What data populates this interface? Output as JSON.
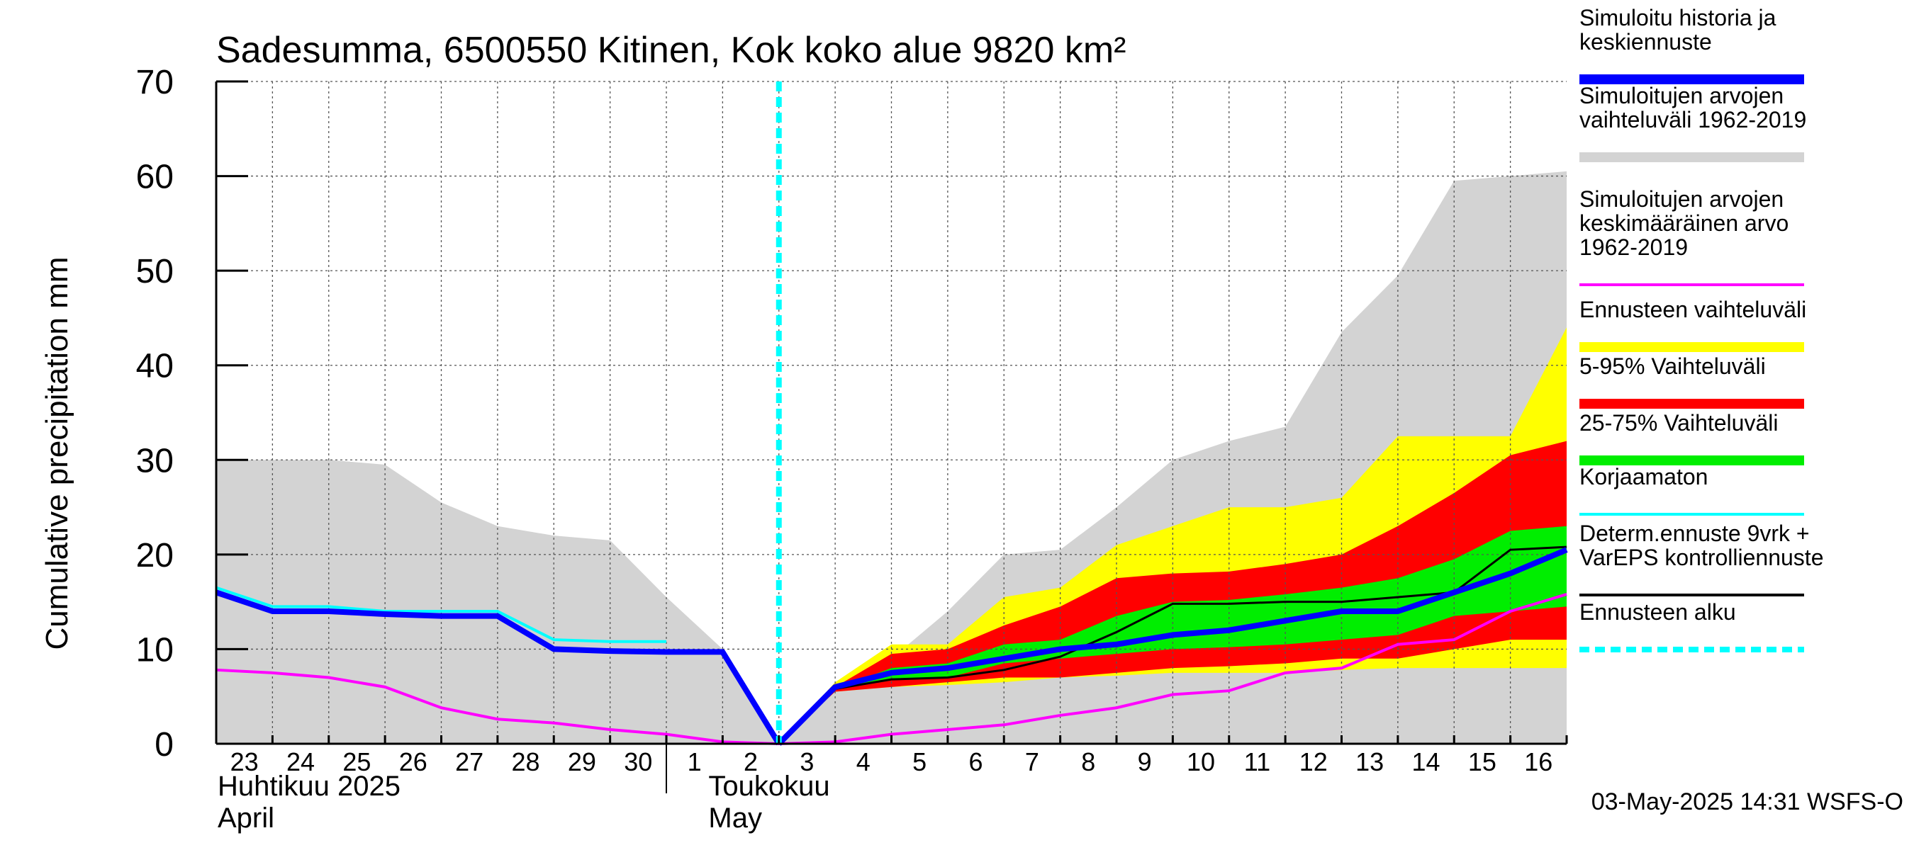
{
  "chart_data": {
    "type": "area",
    "title": "Sadesumma, 6500550 Kitinen, Kok koko alue 9820 km²",
    "ylabel": "Cumulative precipitation   mm",
    "ylim": [
      0,
      70
    ],
    "yticks": [
      "0",
      "10",
      "20",
      "30",
      "40",
      "50",
      "60",
      "70"
    ],
    "x_start": "2025-04-23",
    "x_end": "2025-05-17",
    "x_tick_labels": [
      "23",
      "24",
      "25",
      "26",
      "27",
      "28",
      "29",
      "30",
      "1",
      "2",
      "3",
      "4",
      "5",
      "6",
      "7",
      "8",
      "9",
      "10",
      "11",
      "12",
      "13",
      "14",
      "15",
      "16"
    ],
    "month_labels": [
      {
        "line1": "Huhtikuu  2025",
        "line2": "April"
      },
      {
        "line1": "Toukokuu",
        "line2": "May"
      }
    ],
    "forecast_start": "2025-05-03",
    "footer": "03-May-2025 14:31 WSFS-O",
    "legend": [
      {
        "label": "Simuloitu historia ja\nkeskiennuste",
        "color": "#0000ff",
        "kind": "thick"
      },
      {
        "label": "Simuloitujen arvojen\nvaihteluväli 1962-2019",
        "color": "#d3d3d3",
        "kind": "thick"
      },
      {
        "label": "Simuloitujen arvojen\nkeskimääräinen arvo\n   1962-2019",
        "color": "#ff00ff",
        "kind": "thin"
      },
      {
        "label": "Ennusteen vaihteluväli",
        "color": "#ffff00",
        "kind": "thick"
      },
      {
        "label": "5-95% Vaihteluväli",
        "color": "#ff0000",
        "kind": "thick"
      },
      {
        "label": "25-75% Vaihteluväli",
        "color": "#00ee00",
        "kind": "thick"
      },
      {
        "label": "Korjaamaton",
        "color": "#00ffff",
        "kind": "thin"
      },
      {
        "label": "Determ.ennuste 9vrk +\nVarEPS kontrolliennuste",
        "color": "#000000",
        "kind": "thin"
      },
      {
        "label": "Ennusteen alku",
        "color": "#00ffff",
        "kind": "dashed"
      }
    ],
    "historical_range": {
      "x": [
        0,
        1,
        2,
        3,
        4,
        5,
        6,
        7,
        8,
        9,
        10,
        11,
        12,
        13,
        14,
        15,
        16,
        17,
        18,
        19,
        20,
        21,
        22,
        23,
        24
      ],
      "upper": [
        30,
        30,
        30,
        29.5,
        25.5,
        23,
        22,
        21.5,
        15.5,
        10,
        0,
        5.5,
        9,
        14,
        20,
        20.5,
        25,
        30,
        32,
        33.5,
        43.5,
        49.5,
        59.5,
        60,
        60.5
      ],
      "lower": [
        0,
        0,
        0,
        0,
        0,
        0,
        0,
        0,
        0,
        0,
        0,
        0,
        0,
        0,
        0,
        0,
        0,
        0,
        0,
        0,
        0,
        0,
        0,
        0,
        0
      ]
    },
    "forecast_x": [
      10,
      11,
      12,
      13,
      14,
      15,
      16,
      17,
      18,
      19,
      20,
      21,
      22,
      23,
      24
    ],
    "ensemble_range": {
      "upper": [
        0,
        6.5,
        10.5,
        10.5,
        15.5,
        16.5,
        21,
        23,
        25,
        25,
        26,
        32.5,
        32.5,
        32.5,
        44
      ],
      "lower": [
        0,
        5.5,
        6,
        6.2,
        6.5,
        7,
        7.2,
        7.5,
        7.5,
        7.5,
        7.8,
        8,
        8,
        8,
        8
      ]
    },
    "p5_95": {
      "upper": [
        0,
        6,
        9.5,
        10,
        12.5,
        14.5,
        17.5,
        18,
        18.2,
        19,
        20,
        23,
        26.5,
        30.5,
        32
      ],
      "lower": [
        0,
        5.5,
        6,
        6.5,
        7,
        7,
        7.5,
        8,
        8.2,
        8.5,
        9,
        9,
        10,
        11,
        11
      ]
    },
    "p25_75": {
      "upper": [
        0,
        5.8,
        8,
        8.5,
        10.5,
        11,
        13.5,
        15,
        15.2,
        15.8,
        16.5,
        17.5,
        19.5,
        22.5,
        23
      ]
    },
    "p25_75_lower": [
      0,
      5.8,
      6.8,
      7,
      8.5,
      9,
      9.5,
      10,
      10.2,
      10.5,
      11,
      11.5,
      13.5,
      14,
      14.5
    ],
    "mean_forecast": {
      "x": [
        10,
        11,
        12,
        13,
        14,
        15,
        16,
        17,
        18,
        19,
        20,
        21,
        22,
        23,
        24
      ],
      "values": [
        0,
        6,
        7.5,
        8,
        9,
        10,
        10.5,
        11.5,
        12,
        13,
        14,
        14,
        16,
        18,
        20.5
      ]
    },
    "simulated_history": {
      "x": [
        0,
        1,
        2,
        3,
        4,
        5,
        6,
        7,
        8,
        9,
        10
      ],
      "values": [
        16,
        14,
        14,
        13.7,
        13.5,
        13.5,
        10,
        9.8,
        9.7,
        9.7,
        0
      ]
    },
    "uncorrected": {
      "x": [
        0,
        1,
        2,
        3,
        4,
        5,
        6,
        7,
        8
      ],
      "values": [
        16.5,
        14.5,
        14.5,
        14,
        14,
        14,
        11,
        10.8,
        10.8
      ]
    },
    "historical_mean": {
      "x": [
        0,
        1,
        2,
        3,
        4,
        5,
        6,
        7,
        8,
        9,
        10,
        11,
        12,
        13,
        14,
        15,
        16,
        17,
        18,
        19,
        20,
        21,
        22,
        23,
        24
      ],
      "values": [
        7.8,
        7.5,
        7,
        6,
        3.8,
        2.6,
        2.2,
        1.5,
        1,
        0.2,
        0,
        0.2,
        1,
        1.5,
        2,
        3,
        3.8,
        5.2,
        5.6,
        7.5,
        8,
        10.5,
        11,
        14,
        15.8
      ]
    },
    "deterministic": {
      "x": [
        10,
        11,
        12,
        13,
        14,
        15,
        16,
        17,
        18,
        19,
        20,
        21,
        22,
        23,
        24
      ],
      "values": [
        0,
        5.8,
        6.8,
        7,
        7.8,
        9.2,
        11.8,
        14.8,
        14.8,
        15,
        15,
        15.5,
        16,
        20.5,
        20.8
      ]
    }
  }
}
